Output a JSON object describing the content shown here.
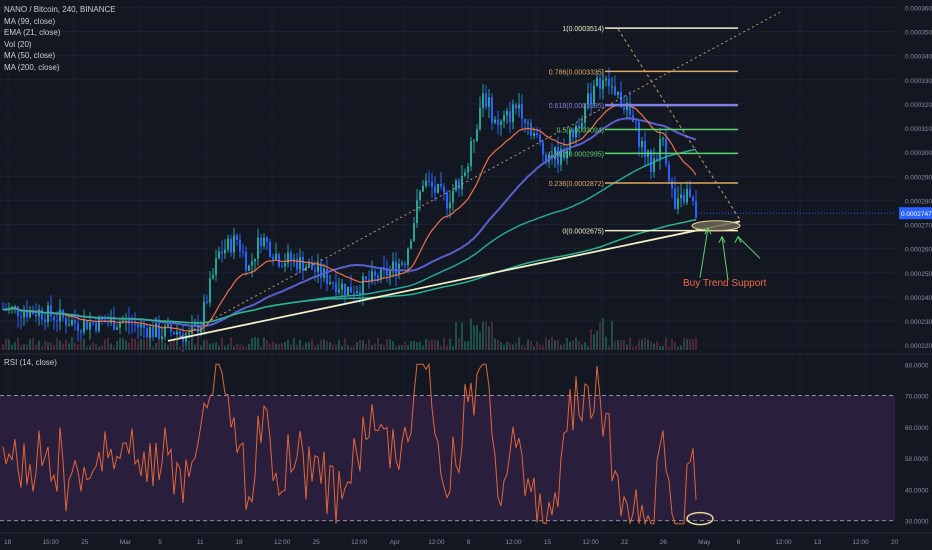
{
  "legend": {
    "symbol": "NANO / Bitcoin, 240, BINANCE",
    "indicators": [
      "EMA (21, close)",
      "Vol (20)",
      "MA (50, close)",
      "MA (200, close)"
    ],
    "first_indicator": "MA (99, close)"
  },
  "rsi_label": "RSI (14, close)",
  "annotation": "Buy Trend Support",
  "current_price": "0.0002747",
  "colors": {
    "background": "#131722",
    "up": "#26a69a",
    "down": "#2962ff",
    "annotation": "#f06a4a",
    "rsi_line": "#e0663a",
    "rsi_band": "#2a1e3d",
    "ma99": "#26a69a",
    "ema21": "#f0704a",
    "ma50": "#5a5fd0",
    "ma200": "#2bb48f",
    "trendline": "#f3efc9"
  },
  "chart_data": {
    "type": "candlestick",
    "price_axis": {
      "ticks": [
        "0.0003600",
        "0.0003500",
        "0.0003400",
        "0.0003300",
        "0.0003200",
        "0.0003100",
        "0.0003000",
        "0.0002900",
        "0.0002800",
        "0.0002700",
        "0.0002600",
        "0.0002500",
        "0.0002400",
        "0.0002300",
        "0.0002200"
      ],
      "range": [
        0.000218,
        0.000361
      ]
    },
    "rsi_axis": {
      "ticks": [
        "80.0000",
        "70.0000",
        "60.0000",
        "50.0000",
        "40.0000",
        "30.0000"
      ],
      "range": [
        27,
        82
      ],
      "band": [
        30,
        70
      ]
    },
    "time_labels": [
      "18",
      "15:00",
      "25",
      "Mar",
      "5",
      "11",
      "18",
      "12:00",
      "25",
      "12:00",
      "Apr",
      "12:00",
      "8",
      "12:00",
      "15",
      "12:00",
      "22",
      "26",
      "May",
      "6",
      "12:00",
      "13",
      "12:00",
      "20"
    ],
    "fib_levels": [
      {
        "label": "1(0.0003514)",
        "value": 0.0003514,
        "color": "#f3efc9"
      },
      {
        "label": "0.786(0.0003335)",
        "value": 0.0003335,
        "color": "#e0a860"
      },
      {
        "label": "0.618(0.0003195)",
        "value": 0.0003195,
        "color": "#7f7fe0"
      },
      {
        "label": "0.5(0.0003094)",
        "value": 0.0003094,
        "color": "#5fd36a"
      },
      {
        "label": "0.382(0.0002995)",
        "value": 0.0002995,
        "color": "#5fd36a"
      },
      {
        "label": "0.236(0.0002872)",
        "value": 0.0002872,
        "color": "#e0a860"
      },
      {
        "label": "0(0.0002675)",
        "value": 0.0002675,
        "color": "#f3efc9"
      }
    ],
    "trend_support": {
      "from_price": 0.0002218,
      "to_price": 0.0002713
    },
    "rsi_marker_value": 30
  }
}
